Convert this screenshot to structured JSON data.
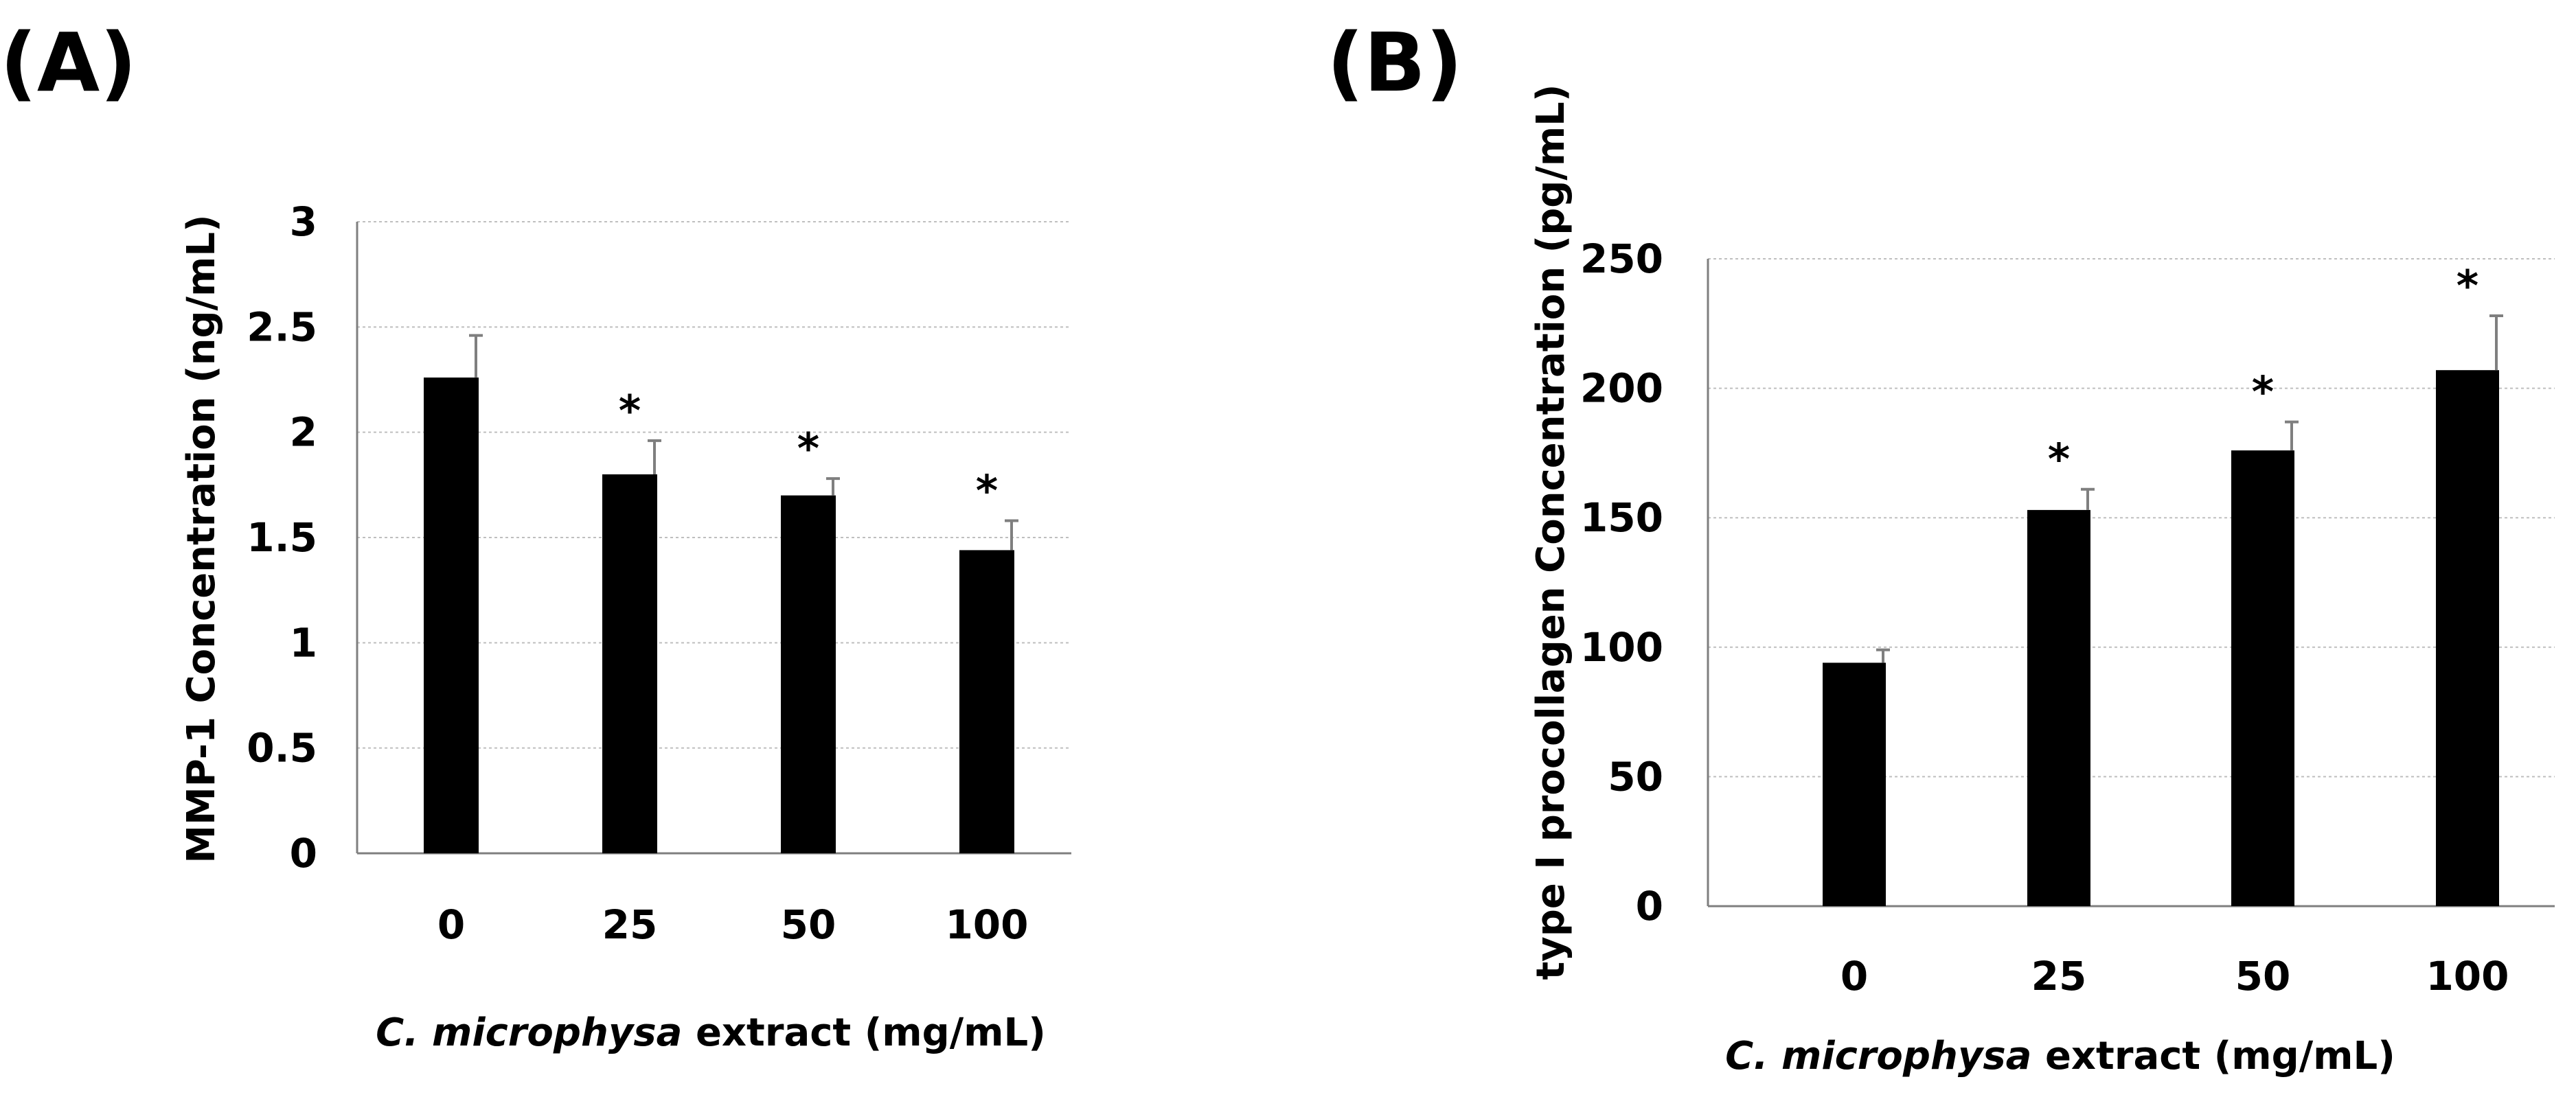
{
  "chart_data": [
    {
      "type": "bar",
      "panel_label": "(A)",
      "categories": [
        "0",
        "25",
        "50",
        "100"
      ],
      "values": [
        2.26,
        1.8,
        1.7,
        1.44
      ],
      "errors": [
        0.2,
        0.16,
        0.08,
        0.14
      ],
      "significance": [
        "",
        "*",
        "*",
        "*"
      ],
      "ylabel": "MMP-1 Concentration (ng/mL)",
      "xlabel_italic": "C. microphysa",
      "xlabel_rest": " extract (mg/mL)",
      "ylim": [
        0,
        3
      ],
      "yticks": [
        0,
        0.5,
        1,
        1.5,
        2,
        2.5,
        3
      ],
      "ytick_labels": [
        "0",
        "0.5",
        "1",
        "1.5",
        "2",
        "2.5",
        "3"
      ],
      "grid": true
    },
    {
      "type": "bar",
      "panel_label": "(B)",
      "categories": [
        "0",
        "25",
        "50",
        "100"
      ],
      "values": [
        94,
        153,
        176,
        207
      ],
      "errors": [
        5,
        8,
        11,
        21
      ],
      "significance": [
        "",
        "*",
        "*",
        "*"
      ],
      "ylabel": "type I procollagen Concentration (pg/mL)",
      "xlabel_italic": "C. microphysa",
      "xlabel_rest": " extract (mg/mL)",
      "ylim": [
        0,
        250
      ],
      "yticks": [
        0,
        50,
        100,
        150,
        200,
        250
      ],
      "ytick_labels": [
        "0",
        "50",
        "100",
        "150",
        "200",
        "250"
      ],
      "grid": true
    }
  ]
}
